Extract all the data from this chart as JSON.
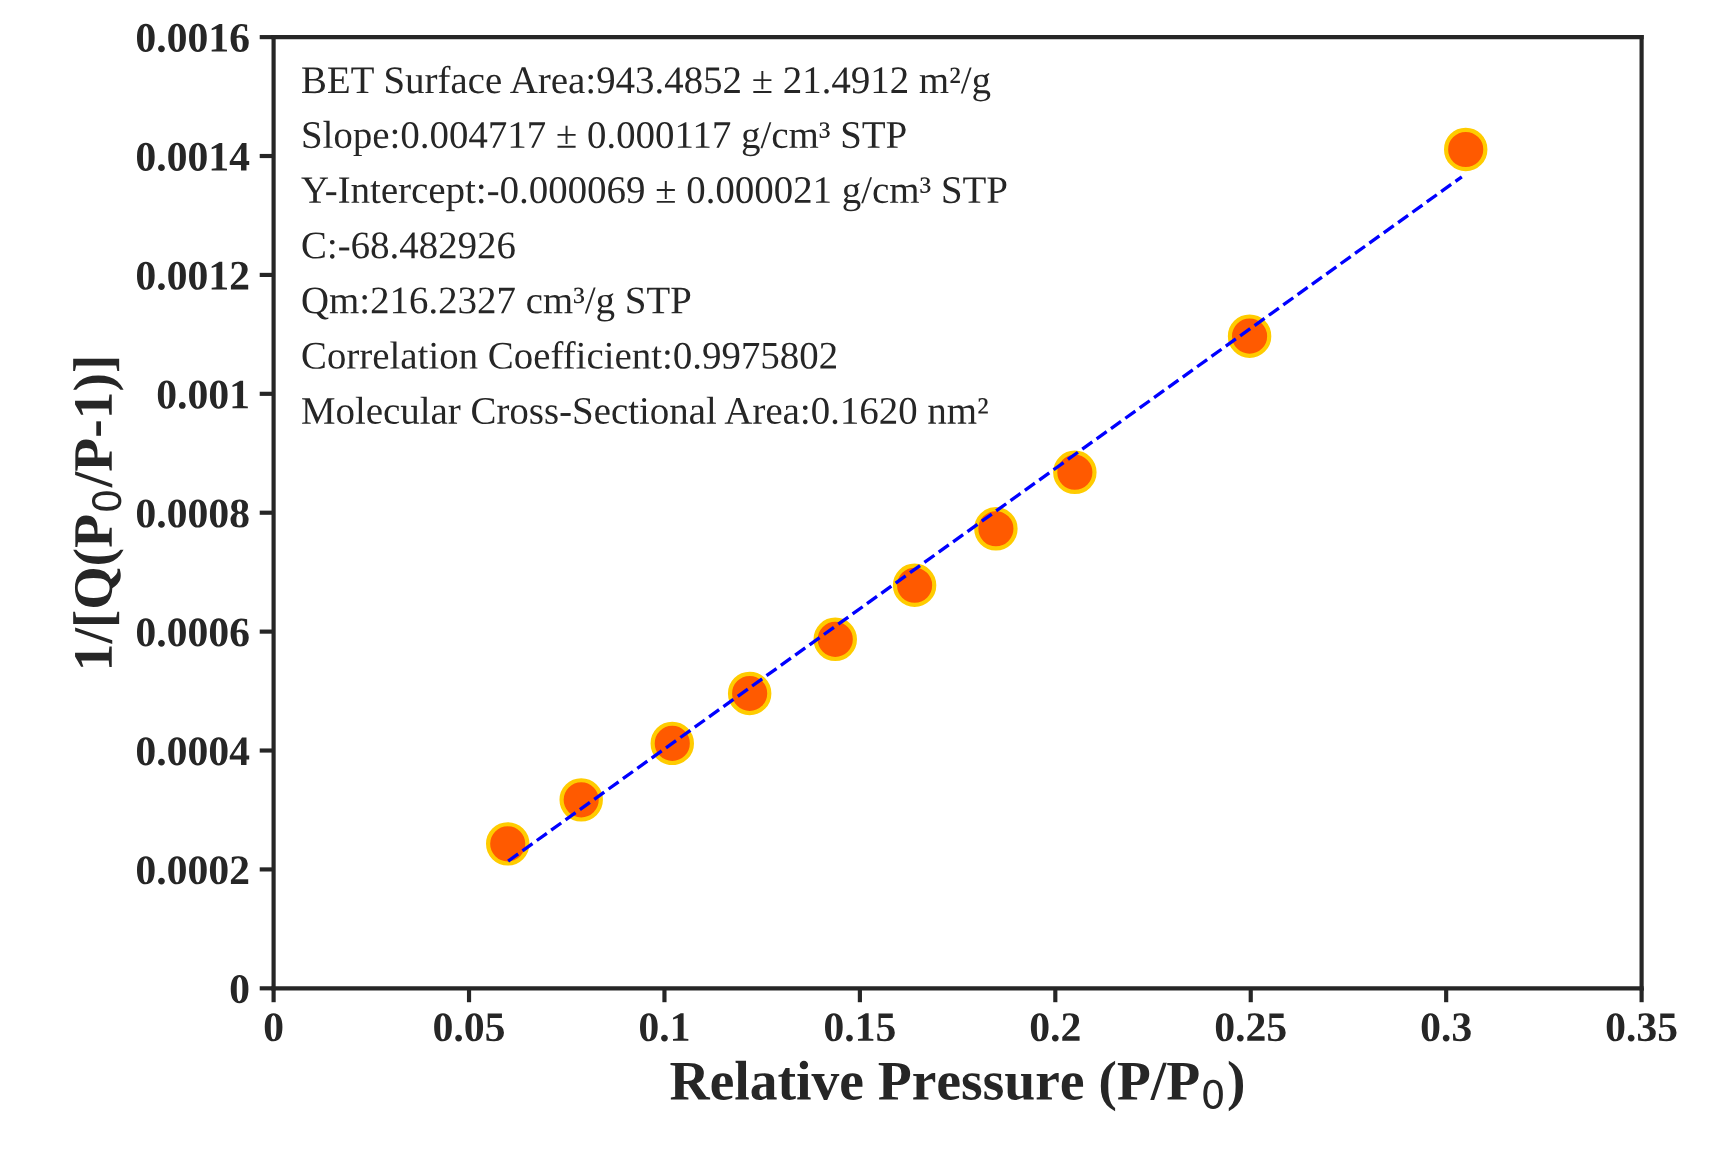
{
  "chart_data": {
    "type": "scatter",
    "xlabel": "Relative Pressure (P/P$_{0}$)",
    "ylabel": "1/[Q(P$_{0}$/P-1)]",
    "xlim": [
      0,
      0.35
    ],
    "ylim": [
      0,
      0.0016
    ],
    "xticks": [
      0,
      0.05,
      0.1,
      0.15,
      0.2,
      0.25,
      0.3,
      0.35
    ],
    "yticks": [
      0,
      0.0002,
      0.0004,
      0.0006,
      0.0008,
      0.001,
      0.0012,
      0.0014,
      0.0016
    ],
    "grid": false,
    "legend": false,
    "series": [
      {
        "type": "scatter",
        "color": "#ff5a00",
        "marker": "circle",
        "x": [
          0.0599,
          0.0787,
          0.102,
          0.1218,
          0.1437,
          0.164,
          0.1848,
          0.205,
          0.2497,
          0.305
        ],
        "values": [
          0.000243,
          0.000317,
          0.000412,
          0.000496,
          0.000587,
          0.000678,
          0.000773,
          0.000868,
          0.001097,
          0.001411
        ]
      },
      {
        "type": "line",
        "color": "#0000ff",
        "line_style": "dashed",
        "x": [
          0.06,
          0.304
        ],
        "values": [
          0.000214,
          0.001365
        ]
      }
    ],
    "annotations": [
      "BET Surface Area:943.4852 ± 21.4912 m²/g",
      "Slope:0.004717 ± 0.000117 g/cm³ STP",
      "Y-Intercept:-0.000069 ± 0.000021 g/cm³ STP",
      "C:-68.482926",
      "Qm:216.2327 cm³/g STP",
      "Correlation Coefficient:0.9975802",
      "Molecular Cross-Sectional Area:0.1620 nm²"
    ]
  }
}
